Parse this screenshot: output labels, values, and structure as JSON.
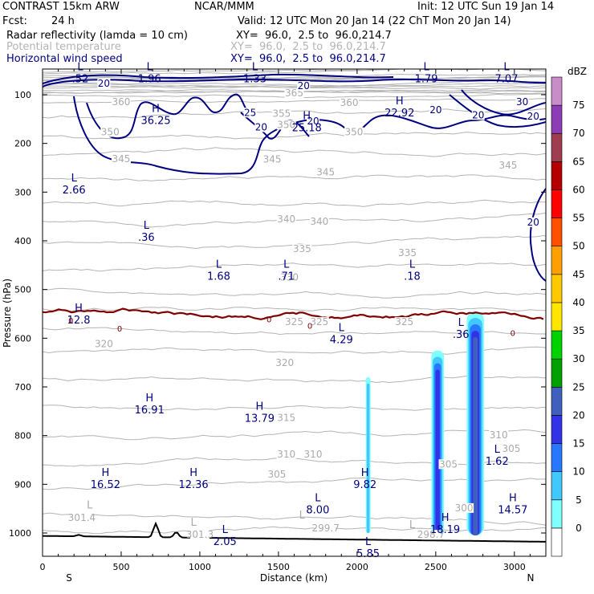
{
  "header": {
    "model": "CONTRAST 15km ARW",
    "org": "NCAR/MMM",
    "init": "Init: 12 UTC Sun 19 Jan 14",
    "fcst_label": "Fcst:",
    "fcst_value": "24 h",
    "valid": "Valid: 12 UTC Mon 20 Jan 14 (22 ChT Mon 20 Jan 14)",
    "fields": [
      {
        "name": "Radar reflectivity (lamda = 10 cm)",
        "xy": "XY=  96.0,  2.5 to  96.0,214.7",
        "color": "#000000"
      },
      {
        "name": "Potential temperature",
        "xy": "XY=  96.0,  2.5 to  96.0,214.7",
        "color": "#b4b4b4"
      },
      {
        "name": "Horizontal wind speed",
        "xy": "XY=  96.0,  2.5 to  96.0,214.7",
        "color": "#000080"
      }
    ]
  },
  "chart_data": {
    "type": "cross-section",
    "xlabel": "Distance (km)",
    "ylabel": "Pressure (hPa)",
    "xlim": [
      0,
      3200
    ],
    "ylim": [
      1060,
      60
    ],
    "x_ticks": [
      0,
      500,
      1000,
      1500,
      2000,
      2500,
      3000
    ],
    "y_ticks": [
      100,
      200,
      300,
      400,
      500,
      600,
      700,
      800,
      900,
      1000
    ],
    "endpoints": {
      "left": "S",
      "right": "N"
    },
    "colorbar": {
      "unit": "dBZ",
      "levels": [
        0,
        5,
        10,
        15,
        20,
        25,
        30,
        35,
        40,
        45,
        50,
        55,
        60,
        65,
        70,
        75
      ],
      "colors": [
        "#ffffff",
        "#80ffff",
        "#40c8ff",
        "#2878ff",
        "#3232e6",
        "#4060c0",
        "#00a000",
        "#00d200",
        "#ffe600",
        "#ffc800",
        "#ffa000",
        "#ff5000",
        "#ff0000",
        "#b40000",
        "#a03c50",
        "#8c3cb4",
        "#c88cc8"
      ]
    },
    "theta_labels": [
      {
        "t": "365",
        "x": 1600,
        "p": 100
      },
      {
        "t": "360",
        "x": 1950,
        "p": 120
      },
      {
        "t": "360",
        "x": 500,
        "p": 118
      },
      {
        "t": "355",
        "x": 1520,
        "p": 142
      },
      {
        "t": "350",
        "x": 1550,
        "p": 165
      },
      {
        "t": "350",
        "x": 1980,
        "p": 180
      },
      {
        "t": "350",
        "x": 430,
        "p": 180
      },
      {
        "t": "345",
        "x": 500,
        "p": 235
      },
      {
        "t": "345",
        "x": 1460,
        "p": 236
      },
      {
        "t": "345",
        "x": 1800,
        "p": 262
      },
      {
        "t": "345",
        "x": 2960,
        "p": 248
      },
      {
        "t": "340",
        "x": 1550,
        "p": 359
      },
      {
        "t": "340",
        "x": 1760,
        "p": 364
      },
      {
        "t": "335",
        "x": 1650,
        "p": 420
      },
      {
        "t": "335",
        "x": 2320,
        "p": 428
      },
      {
        "t": "330",
        "x": 1570,
        "p": 478
      },
      {
        "t": "325",
        "x": 1600,
        "p": 570
      },
      {
        "t": "325",
        "x": 1760,
        "p": 570
      },
      {
        "t": "325",
        "x": 2300,
        "p": 570
      },
      {
        "t": "320",
        "x": 390,
        "p": 615
      },
      {
        "t": "320",
        "x": 1540,
        "p": 654
      },
      {
        "t": "315",
        "x": 1550,
        "p": 767
      },
      {
        "t": "310",
        "x": 1550,
        "p": 842
      },
      {
        "t": "310",
        "x": 1720,
        "p": 842
      },
      {
        "t": "310",
        "x": 2900,
        "p": 802
      },
      {
        "t": "305",
        "x": 1490,
        "p": 883
      },
      {
        "t": "305",
        "x": 2580,
        "p": 862
      },
      {
        "t": "305",
        "x": 2980,
        "p": 830
      },
      {
        "t": "300",
        "x": 2680,
        "p": 952
      },
      {
        "t": "301.4",
        "x": 250,
        "p": 972
      },
      {
        "t": "301.3",
        "x": 1000,
        "p": 1007
      },
      {
        "t": "299.7",
        "x": 1800,
        "p": 993
      },
      {
        "t": "298.7",
        "x": 2470,
        "p": 1007
      }
    ],
    "theta_extremes": [
      {
        "k": "L",
        "x": 300,
        "p": 950
      },
      {
        "k": "L",
        "x": 960,
        "p": 985
      },
      {
        "k": "L",
        "x": 1650,
        "p": 970
      },
      {
        "k": "L",
        "x": 2350,
        "p": 990
      }
    ],
    "wind_labels": [
      {
        "t": "20",
        "x": 390,
        "p": 80
      },
      {
        "t": "20",
        "x": 1660,
        "p": 85
      },
      {
        "t": "25",
        "x": 1320,
        "p": 140
      },
      {
        "t": "20",
        "x": 1390,
        "p": 170
      },
      {
        "t": "20",
        "x": 1720,
        "p": 158
      },
      {
        "t": "20",
        "x": 2500,
        "p": 135
      },
      {
        "t": "20",
        "x": 2770,
        "p": 145
      },
      {
        "t": "30",
        "x": 3050,
        "p": 118
      },
      {
        "t": "20",
        "x": 3120,
        "p": 148
      },
      {
        "t": "20",
        "x": 3120,
        "p": 365
      }
    ],
    "wind_extremes": [
      {
        "k": "L",
        "x": 240,
        "p": 55,
        "v": ".52"
      },
      {
        "k": "L",
        "x": 680,
        "p": 55,
        "v": "1.96"
      },
      {
        "k": "L",
        "x": 1350,
        "p": 55,
        "v": "1.33"
      },
      {
        "k": "L",
        "x": 2440,
        "p": 55,
        "v": "1.79"
      },
      {
        "k": "L",
        "x": 2950,
        "p": 55,
        "v": "7.07"
      },
      {
        "k": "H",
        "x": 720,
        "p": 140,
        "v": "36.25"
      },
      {
        "k": "H",
        "x": 1680,
        "p": 155,
        "v": "25.18"
      },
      {
        "k": "H",
        "x": 2270,
        "p": 125,
        "v": "22.92"
      },
      {
        "k": "L",
        "x": 200,
        "p": 283,
        "v": "2.66"
      },
      {
        "k": "L",
        "x": 660,
        "p": 380,
        "v": ".36"
      },
      {
        "k": "L",
        "x": 1120,
        "p": 460,
        "v": "1.68"
      },
      {
        "k": "L",
        "x": 1550,
        "p": 460,
        "v": ".71"
      },
      {
        "k": "L",
        "x": 2350,
        "p": 460,
        "v": ".18"
      },
      {
        "k": "H",
        "x": 230,
        "p": 550,
        "v": "12.8"
      },
      {
        "k": "L",
        "x": 1900,
        "p": 590,
        "v": "4.29"
      },
      {
        "k": "L",
        "x": 2660,
        "p": 580,
        "v": ".36"
      },
      {
        "k": "H",
        "x": 680,
        "p": 735,
        "v": "16.91"
      },
      {
        "k": "H",
        "x": 1380,
        "p": 752,
        "v": "13.79"
      },
      {
        "k": "H",
        "x": 400,
        "p": 888,
        "v": "16.52"
      },
      {
        "k": "H",
        "x": 960,
        "p": 888,
        "v": "12.36"
      },
      {
        "k": "L",
        "x": 2890,
        "p": 840,
        "v": "1.62"
      },
      {
        "k": "H",
        "x": 2050,
        "p": 888,
        "v": "9.82"
      },
      {
        "k": "L",
        "x": 1750,
        "p": 940,
        "v": "8.00"
      },
      {
        "k": "H",
        "x": 2990,
        "p": 940,
        "v": "14.57"
      },
      {
        "k": "H",
        "x": 2560,
        "p": 980,
        "v": "18.19"
      },
      {
        "k": "L",
        "x": 1160,
        "p": 1005,
        "v": "2.05"
      },
      {
        "k": "L",
        "x": 2070,
        "p": 1030,
        "v": "5.85"
      }
    ],
    "freezing_marks": [
      {
        "t": "0",
        "x": 180,
        "p": 563
      },
      {
        "t": "0",
        "x": 490,
        "p": 580
      },
      {
        "t": "0",
        "x": 1440,
        "p": 561
      },
      {
        "t": "0",
        "x": 1700,
        "p": 574
      },
      {
        "t": "0",
        "x": 2990,
        "p": 589
      }
    ],
    "reflectivity_cells": [
      {
        "x": 2070,
        "p_top": 680,
        "p_bot": 1000,
        "width": 30,
        "level": 5
      },
      {
        "x": 2512,
        "p_top": 625,
        "p_bot": 1005,
        "width": 80,
        "level": 15
      },
      {
        "x": 2752,
        "p_top": 545,
        "p_bot": 1005,
        "width": 110,
        "level": 20
      }
    ],
    "terrain_peaks": [
      {
        "x": 720,
        "p": 978
      },
      {
        "x": 850,
        "p": 995
      },
      {
        "x": 230,
        "p": 1003
      }
    ]
  }
}
